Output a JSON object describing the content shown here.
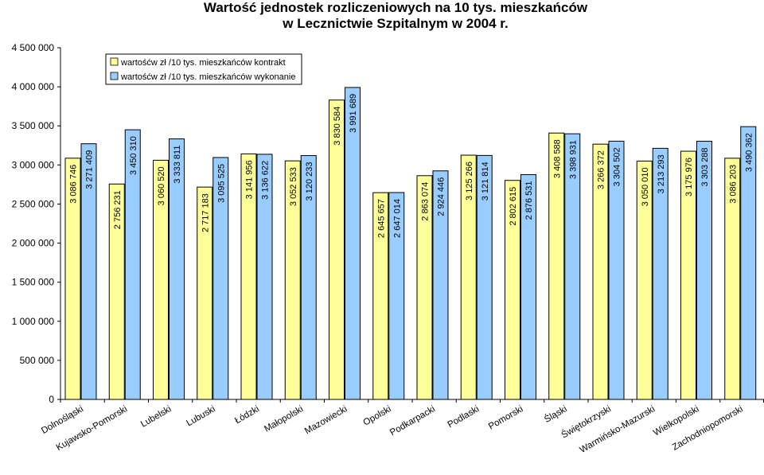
{
  "chart_data": {
    "type": "bar",
    "title": [
      "Wartość jednostek rozliczeniowych na 10 tys. mieszkańców",
      "w Lecznictwie Szpitalnym w 2004 r."
    ],
    "categories": [
      "Dolnośląski",
      "Kujawsko-Pomorski",
      "Lubelski",
      "Lubuski",
      "Łódzki",
      "Małopolski",
      "Mazowiecki",
      "Opolski",
      "Podkarpacki",
      "Podlaski",
      "Pomorski",
      "Śląski",
      "Świętokrzyski",
      "Warmińsko-Mazurski",
      "Wielkopolski",
      "Zachodniopomorski"
    ],
    "series": [
      {
        "name": "wartośćw zł /10 tys. mieszkańców kontrakt",
        "color": "#FFFF99",
        "values": [
          3086746,
          2756231,
          3060520,
          2717183,
          3141956,
          3052533,
          3830584,
          2645657,
          2863074,
          3125266,
          2802615,
          3408588,
          3266372,
          3050010,
          3175976,
          3086203
        ],
        "labels": [
          "3 086 746",
          "2 756 231",
          "3 060 520",
          "2 717 183",
          "3 141 956",
          "3 052 533",
          "3 830 584",
          "2 645 657",
          "2 863 074",
          "3 125 266",
          "2 802 615",
          "3 408 588",
          "3 266 372",
          "3 050 010",
          "3 175 976",
          "3 086 203"
        ]
      },
      {
        "name": "wartośćw zł /10 tys. mieszkańców wykonanie",
        "color": "#99CCFF",
        "values": [
          3271409,
          3450310,
          3333811,
          3095525,
          3136622,
          3120233,
          3991689,
          2647014,
          2924446,
          3121814,
          2876531,
          3398931,
          3304502,
          3213293,
          3303288,
          3490362
        ],
        "labels": [
          "3 271 409",
          "3 450 310",
          "3 333 811",
          "3 095 525",
          "3 136 622",
          "3 120 233",
          "3 991 689",
          "2 647 014",
          "2 924 446",
          "3 121 814",
          "2 876 531",
          "3 398 931",
          "3 304 502",
          "3 213 293",
          "3 303 288",
          "3 490 362"
        ]
      }
    ],
    "ylim": [
      0,
      4500000
    ],
    "yticks": [
      0,
      500000,
      1000000,
      1500000,
      2000000,
      2500000,
      3000000,
      3500000,
      4000000,
      4500000
    ],
    "ytick_labels": [
      "0",
      "500 000",
      "1 000 000",
      "1 500 000",
      "2 000 000",
      "2 500 000",
      "3 000 000",
      "3 500 000",
      "4 000 000",
      "4 500 000"
    ],
    "grid": false,
    "legend_position": "top-left"
  }
}
